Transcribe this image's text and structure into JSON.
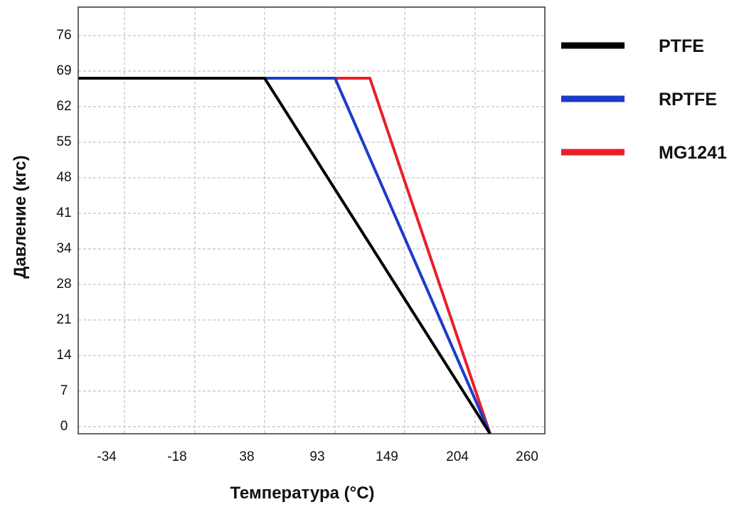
{
  "chart_data": {
    "type": "line",
    "title": "",
    "xlabel": "Температура (°C)",
    "ylabel": "Давление (кгс)",
    "x_ticks": [
      "-34",
      "-18",
      "38",
      "93",
      "149",
      "204",
      "260"
    ],
    "y_ticks": [
      "0",
      "7",
      "14",
      "21",
      "28",
      "34",
      "41",
      "48",
      "55",
      "62",
      "69",
      "76"
    ],
    "x_tick_positions": [
      -34,
      -18,
      38,
      93,
      149,
      204,
      260
    ],
    "y_tick_positions": [
      0,
      7,
      14,
      21,
      28,
      34,
      41,
      48,
      55,
      62,
      69,
      76
    ],
    "grid": true,
    "legend_position": "right",
    "series": [
      {
        "name": "PTFE",
        "color": "#000000",
        "x": [
          -50,
          38,
          216
        ],
        "y": [
          69,
          69,
          0
        ]
      },
      {
        "name": "RPTFE",
        "color": "#1c3cc8",
        "x": [
          38,
          93,
          216
        ],
        "y": [
          69,
          69,
          0
        ]
      },
      {
        "name": "MG1241",
        "color": "#e8202a",
        "x": [
          93,
          121,
          216
        ],
        "y": [
          69,
          69,
          0
        ]
      }
    ]
  }
}
